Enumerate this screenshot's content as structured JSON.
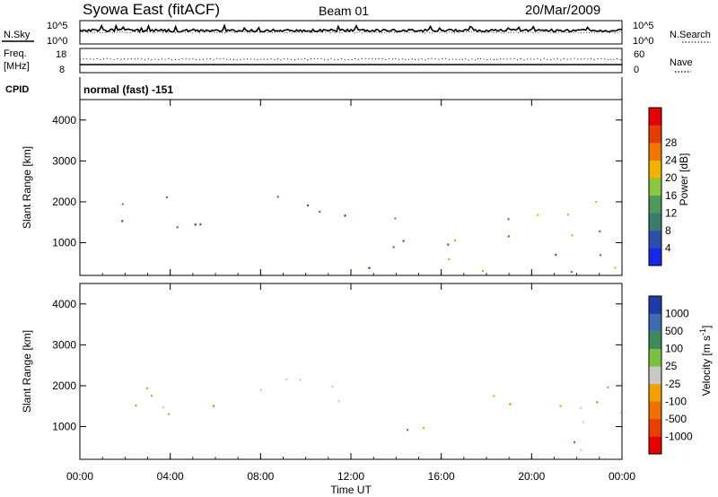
{
  "header": {
    "station": "Syowa East (fitACF)",
    "beam": "Beam 01",
    "date": "20/Mar/2009"
  },
  "top_panels": {
    "nsky_label": "N.Sky",
    "nsky_ticks": [
      "10^5",
      "10^0"
    ],
    "nsearch_label": "N.Search",
    "nsearch_ticks": [
      "10^5",
      "10^0"
    ],
    "freq_label": "Freq.",
    "freq_unit": "[MHz]",
    "freq_ticks": [
      "18",
      "8"
    ],
    "nave_label": "Nave",
    "nave_ticks": [
      "60",
      "0"
    ],
    "cpid_label": "CPID",
    "cpid_value": "normal (fast) -151"
  },
  "colors": {
    "power_scale": [
      "#1428e6",
      "#2a4fb0",
      "#3c7a6c",
      "#4f9a5a",
      "#8cc63c",
      "#f0b400",
      "#f07800",
      "#e63c00",
      "#e60000"
    ],
    "velocity_scale": [
      "#1e3ca8",
      "#3e6cb0",
      "#3f8a5c",
      "#7bc042",
      "#c8c8c8",
      "#f0a000",
      "#f07000",
      "#e84000",
      "#e60000"
    ]
  },
  "chart_data": [
    {
      "type": "heatmap",
      "xlabel": "",
      "ylabel": "Slant Range [km]",
      "xlim": [
        "00:00",
        "24:00"
      ],
      "ylim": [
        200,
        4500
      ],
      "y_ticks": [
        "1000",
        "2000",
        "3000",
        "4000"
      ],
      "colorbar_label": "Power [dB]",
      "colorbar_ticks": [
        "4",
        "8",
        "12",
        "16",
        "20",
        "24",
        "28"
      ],
      "echo_regions": [
        {
          "t_start": 1.5,
          "t_end": 6.0,
          "range_min": 700,
          "range_max": 2200,
          "level": "8-20"
        },
        {
          "t_start": 6.0,
          "t_end": 12.0,
          "range_min": 1200,
          "range_max": 2200,
          "level": "4-8"
        },
        {
          "t_start": 12.0,
          "t_end": 14.0,
          "range_min": 300,
          "range_max": 2200,
          "level": "4-12"
        },
        {
          "t_start": 14.0,
          "t_end": 17.0,
          "range_min": 400,
          "range_max": 2000,
          "level": "12-28"
        },
        {
          "t_start": 17.0,
          "t_end": 24.0,
          "range_min": 300,
          "range_max": 2100,
          "level": "4-28"
        }
      ]
    },
    {
      "type": "heatmap",
      "xlabel": "Time UT",
      "ylabel": "Slant Range [km]",
      "xlim": [
        "00:00",
        "24:00"
      ],
      "ylim": [
        200,
        4500
      ],
      "x_ticks": [
        "00:00",
        "04:00",
        "08:00",
        "12:00",
        "16:00",
        "20:00",
        "00:00"
      ],
      "y_ticks": [
        "1000",
        "2000",
        "3000",
        "4000"
      ],
      "colorbar_label": "Velocity [m s^-1]",
      "colorbar_ticks": [
        "1000",
        "500",
        "100",
        "25",
        "-25",
        "-100",
        "-500",
        "-1000"
      ],
      "echo_regions": [
        {
          "t_start": 1.5,
          "t_end": 6.0,
          "range_min": 700,
          "range_max": 2200,
          "level": "-100 to 100"
        },
        {
          "t_start": 6.0,
          "t_end": 12.0,
          "range_min": 1200,
          "range_max": 2200,
          "level": "-25 to 25"
        },
        {
          "t_start": 14.0,
          "t_end": 17.0,
          "range_min": 400,
          "range_max": 2000,
          "level": "-500 to 100"
        },
        {
          "t_start": 17.0,
          "t_end": 24.0,
          "range_min": 300,
          "range_max": 2100,
          "level": "-500 to 500"
        }
      ]
    }
  ]
}
